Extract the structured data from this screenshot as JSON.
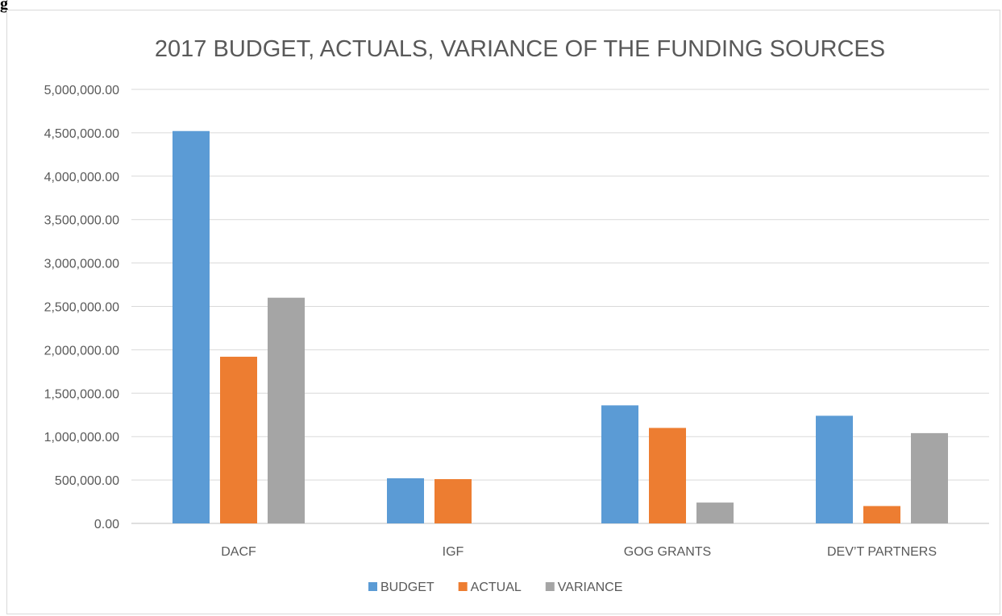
{
  "figure_label": "g",
  "chart_data": {
    "type": "bar",
    "title": "2017 BUDGET, ACTUALS, VARIANCE OF THE FUNDING SOURCES",
    "xlabel": "",
    "ylabel": "",
    "categories": [
      "DACF",
      "IGF",
      "GOG GRANTS",
      "DEV’T PARTNERS"
    ],
    "series": [
      {
        "name": "BUDGET",
        "color": "#5b9bd5",
        "values": [
          4520000,
          520000,
          1360000,
          1240000
        ]
      },
      {
        "name": "ACTUAL",
        "color": "#ed7d31",
        "values": [
          1920000,
          510000,
          1100000,
          200000
        ]
      },
      {
        "name": "VARIANCE",
        "color": "#a5a5a5",
        "values": [
          2600000,
          0,
          240000,
          1040000
        ]
      }
    ],
    "ylim": [
      0,
      5000000
    ],
    "yticks": [
      "0.00",
      "500,000.00",
      "1,000,000.00",
      "1,500,000.00",
      "2,000,000.00",
      "2,500,000.00",
      "3,000,000.00",
      "3,500,000.00",
      "4,000,000.00",
      "4,500,000.00",
      "5,000,000.00"
    ],
    "grid": true,
    "legend_position": "bottom"
  }
}
